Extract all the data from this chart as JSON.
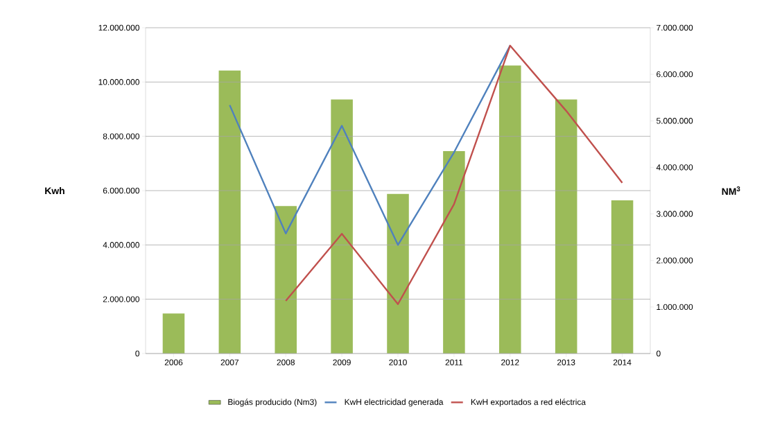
{
  "chart_data": {
    "type": "bar",
    "categories": [
      "2006",
      "2007",
      "2008",
      "2009",
      "2010",
      "2011",
      "2012",
      "2013",
      "2014"
    ],
    "series": [
      {
        "name": "Biogás producido (Nm3)",
        "axis": "y2",
        "color": "#9bbb59",
        "values": [
          860000,
          6080000,
          3170000,
          5460000,
          3430000,
          4350000,
          6190000,
          5460000,
          3290000
        ]
      },
      {
        "name": "KwH electricidad generada",
        "type": "line",
        "color": "#4f81bd",
        "values": [
          null,
          9150000,
          4420000,
          8390000,
          4000000,
          7410000,
          11340000,
          null,
          null
        ]
      },
      {
        "name": "KwH exportados a red eléctrica",
        "type": "line",
        "color": "#c0504d",
        "values": [
          null,
          null,
          1940000,
          4410000,
          1820000,
          5500000,
          11340000,
          8940000,
          6290000
        ]
      }
    ],
    "ylabel": "Kwh",
    "y2label": "NM$^{3}$",
    "ylim": [
      0,
      12000000
    ],
    "yticks": [
      0,
      {
        "value": 2000000,
        "label": "2.000.000"
      },
      {
        "value": 4000000,
        "label": "4.000.000"
      },
      {
        "value": 6000000,
        "label": "6.000.000"
      },
      {
        "value": 8000000,
        "label": "8.000.000"
      },
      {
        "value": 10000000,
        "label": "10.000.000"
      },
      {
        "value": 12000000,
        "label": "12.000.000"
      }
    ],
    "y2lim": [
      0,
      7000000
    ],
    "y2ticks": [
      0,
      {
        "value": 1000000,
        "label": "1.000.000"
      },
      {
        "value": 2000000,
        "label": "2.000.000"
      },
      {
        "value": 3000000,
        "label": "3.000.000"
      },
      {
        "value": 4000000,
        "label": "4.000.000"
      },
      {
        "value": 5000000,
        "label": "5.000.000"
      },
      {
        "value": 6000000,
        "label": "6.000.000"
      },
      {
        "value": 7000000,
        "label": "7.000.000"
      }
    ],
    "grid": "y",
    "legend": "bottom",
    "marker": "none",
    "line_style": "solid"
  }
}
